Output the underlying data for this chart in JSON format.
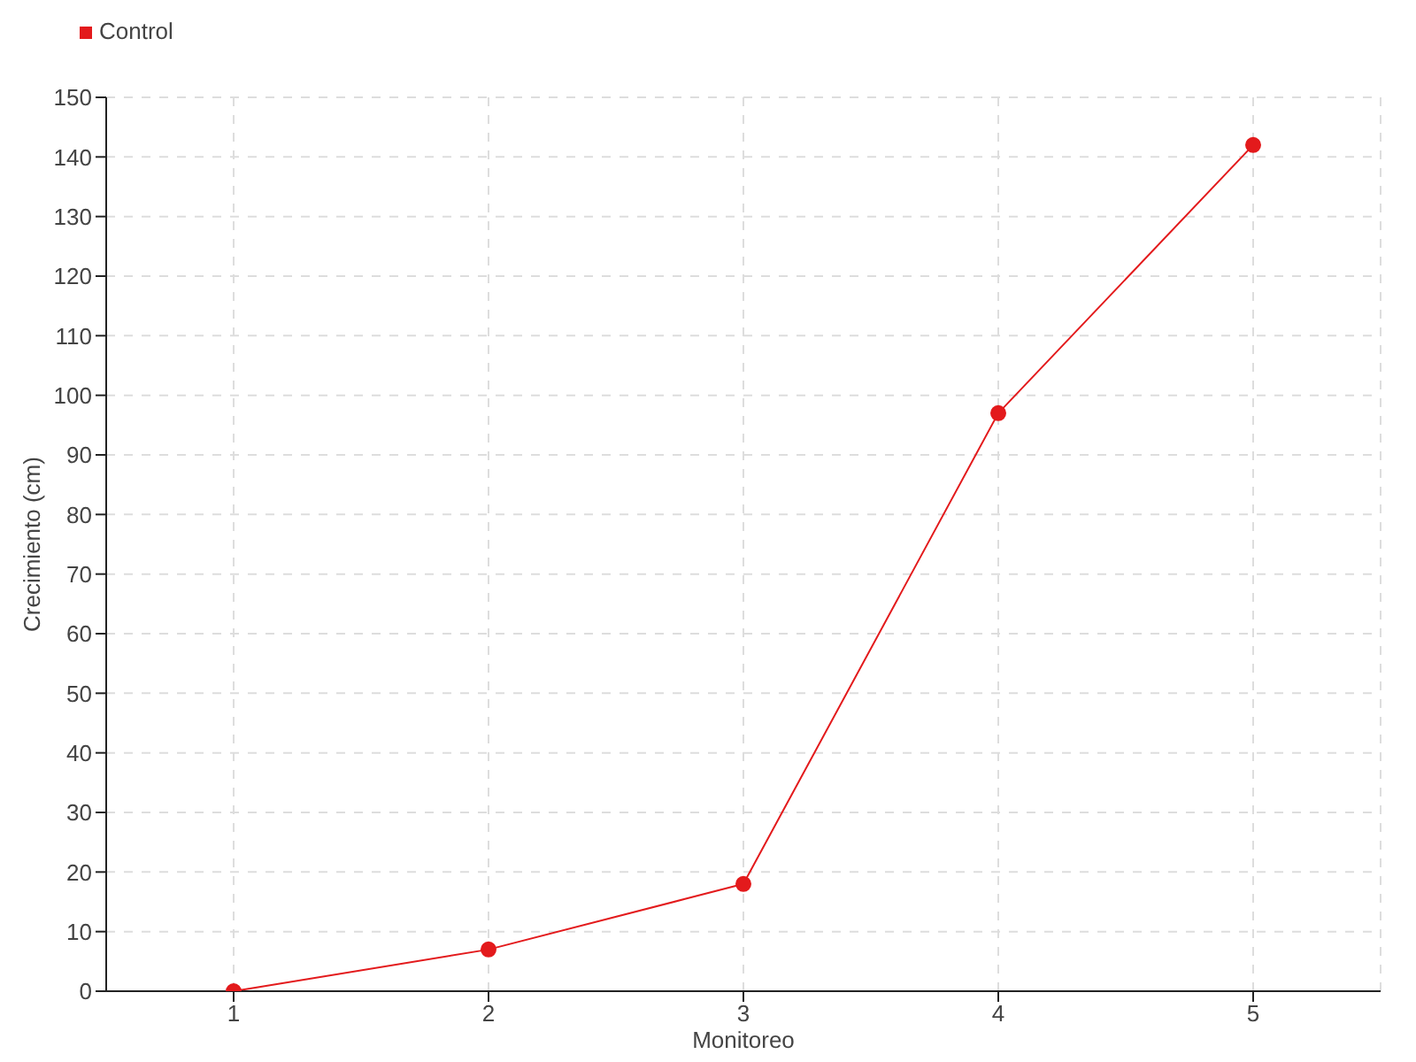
{
  "chart_data": {
    "type": "line",
    "xlabel": "Monitoreo",
    "ylabel": "Crecimiento (cm)",
    "x": [
      1,
      2,
      3,
      4,
      5
    ],
    "series": [
      {
        "name": "Control",
        "color": "#e31a1c",
        "values": [
          0,
          7,
          18,
          97,
          142
        ]
      }
    ],
    "xlim": [
      0.5,
      5.5
    ],
    "xticks": [
      1,
      2,
      3,
      4,
      5
    ],
    "ylim": [
      0,
      150
    ],
    "yticks": [
      0,
      10,
      20,
      30,
      40,
      50,
      60,
      70,
      80,
      90,
      100,
      110,
      120,
      130,
      140,
      150
    ],
    "grid": true,
    "legend": "top left",
    "marker": "circle",
    "line_style": "solid"
  }
}
